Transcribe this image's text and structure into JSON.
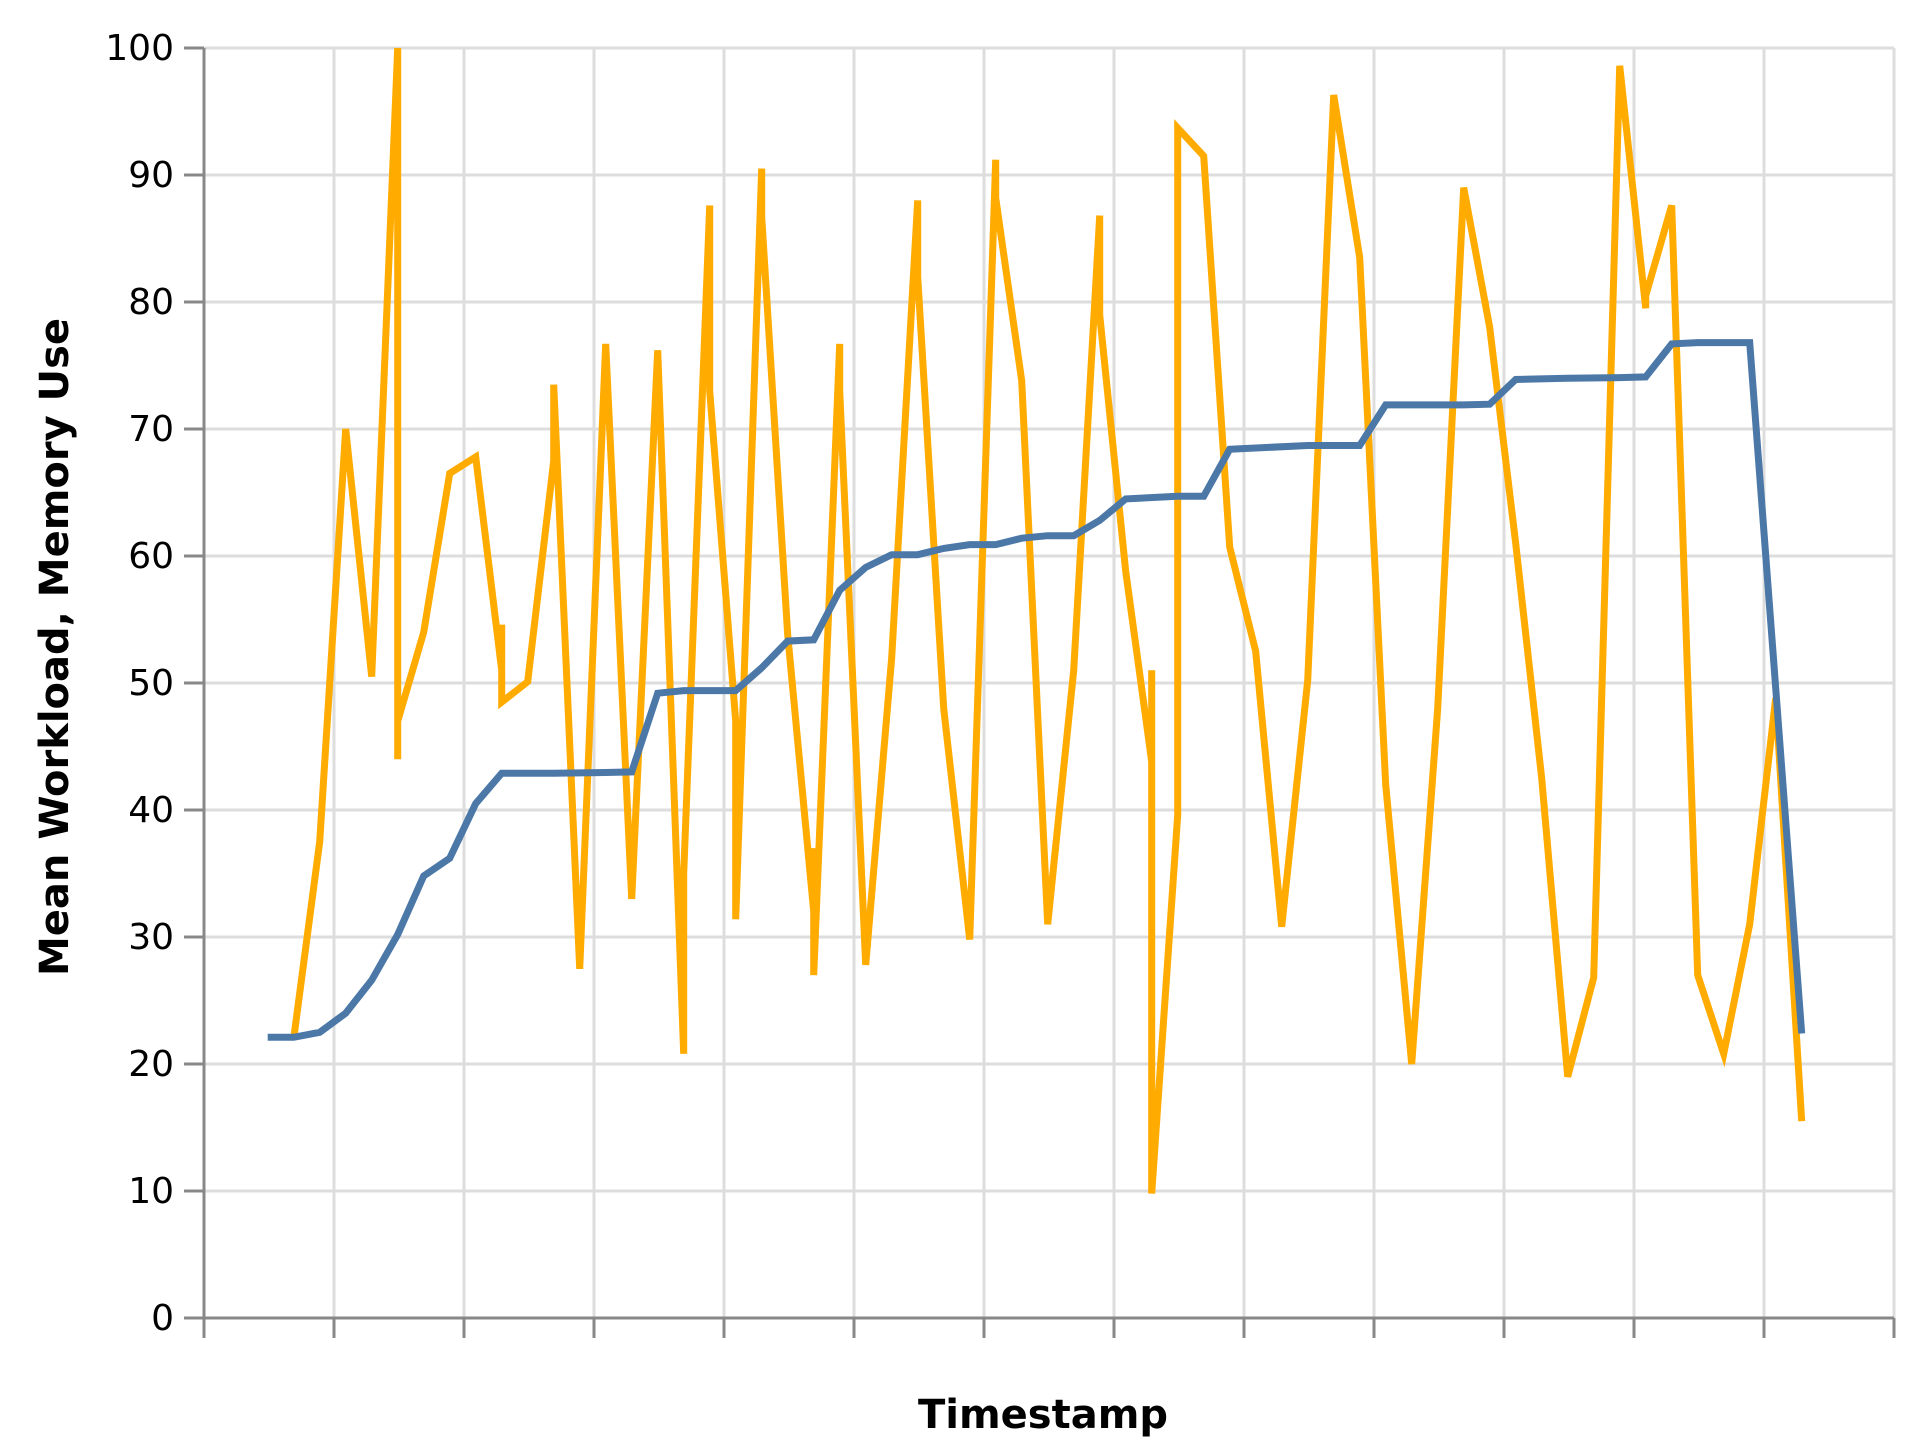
{
  "chart_data": {
    "type": "line",
    "title": "",
    "xlabel": "Timestamp",
    "ylabel": "Mean Workload, Memory Use",
    "ylim": [
      0,
      100
    ],
    "yticks": [
      0,
      10,
      20,
      30,
      40,
      50,
      60,
      70,
      80,
      90,
      100
    ],
    "xlim": [
      0,
      13
    ],
    "xtick_count": 14,
    "grid": true,
    "legend": "none",
    "series": [
      {
        "color": "#ffab00",
        "points": [
          [
            0.69,
            22.0
          ],
          [
            0.89,
            37.5
          ],
          [
            1.09,
            70.0
          ],
          [
            1.29,
            50.5
          ],
          [
            1.49,
            100.0
          ],
          [
            1.49,
            44.0
          ],
          [
            1.49,
            47.0
          ],
          [
            1.69,
            54.0
          ],
          [
            1.89,
            66.5
          ],
          [
            2.09,
            67.8
          ],
          [
            2.29,
            51.0
          ],
          [
            2.29,
            54.6
          ],
          [
            2.29,
            48.5
          ],
          [
            2.49,
            50.1
          ],
          [
            2.69,
            67.5
          ],
          [
            2.69,
            73.5
          ],
          [
            2.89,
            27.5
          ],
          [
            3.09,
            76.7
          ],
          [
            3.29,
            33.0
          ],
          [
            3.49,
            76.2
          ],
          [
            3.69,
            20.8
          ],
          [
            3.69,
            35.0
          ],
          [
            3.89,
            87.6
          ],
          [
            3.89,
            73.0
          ],
          [
            4.09,
            47.0
          ],
          [
            4.09,
            31.4
          ],
          [
            4.29,
            90.5
          ],
          [
            4.29,
            86.7
          ],
          [
            4.49,
            53.8
          ],
          [
            4.69,
            32.0
          ],
          [
            4.69,
            37.0
          ],
          [
            4.69,
            27.0
          ],
          [
            4.89,
            76.7
          ],
          [
            4.89,
            73.0
          ],
          [
            5.09,
            27.8
          ],
          [
            5.29,
            52.0
          ],
          [
            5.49,
            88.0
          ],
          [
            5.49,
            82.0
          ],
          [
            5.69,
            48.0
          ],
          [
            5.89,
            29.8
          ],
          [
            6.09,
            91.2
          ],
          [
            6.09,
            88.2
          ],
          [
            6.29,
            73.8
          ],
          [
            6.49,
            31.0
          ],
          [
            6.69,
            51.0
          ],
          [
            6.89,
            86.8
          ],
          [
            6.89,
            79.0
          ],
          [
            7.09,
            58.8
          ],
          [
            7.29,
            43.8
          ],
          [
            7.29,
            51.0
          ],
          [
            7.29,
            9.8
          ],
          [
            7.49,
            39.6
          ],
          [
            7.49,
            93.7
          ],
          [
            7.69,
            91.5
          ],
          [
            7.89,
            60.7
          ],
          [
            8.09,
            52.5
          ],
          [
            8.29,
            30.8
          ],
          [
            8.49,
            50.2
          ],
          [
            8.69,
            96.3
          ],
          [
            8.89,
            83.5
          ],
          [
            9.09,
            42.0
          ],
          [
            9.29,
            20.0
          ],
          [
            9.49,
            48.0
          ],
          [
            9.69,
            89.0
          ],
          [
            9.89,
            78.0
          ],
          [
            10.09,
            61.0
          ],
          [
            10.29,
            42.5
          ],
          [
            10.49,
            19.0
          ],
          [
            10.69,
            26.8
          ],
          [
            10.89,
            98.6
          ],
          [
            11.09,
            79.5
          ],
          [
            11.09,
            80.5
          ],
          [
            11.29,
            87.6
          ],
          [
            11.49,
            27.0
          ],
          [
            11.69,
            20.8
          ],
          [
            11.89,
            31.0
          ],
          [
            12.09,
            48.8
          ],
          [
            12.29,
            15.5
          ]
        ]
      },
      {
        "color": "#4c78a8",
        "points": [
          [
            0.49,
            22.1
          ],
          [
            0.69,
            22.1
          ],
          [
            0.89,
            22.5
          ],
          [
            1.09,
            24.0
          ],
          [
            1.29,
            26.6
          ],
          [
            1.49,
            30.2
          ],
          [
            1.69,
            34.8
          ],
          [
            1.89,
            36.2
          ],
          [
            2.09,
            40.5
          ],
          [
            2.29,
            42.9
          ],
          [
            2.69,
            42.9
          ],
          [
            3.09,
            42.95
          ],
          [
            3.29,
            43.0
          ],
          [
            3.49,
            49.2
          ],
          [
            3.69,
            49.4
          ],
          [
            4.09,
            49.4
          ],
          [
            4.29,
            51.2
          ],
          [
            4.49,
            53.3
          ],
          [
            4.69,
            53.4
          ],
          [
            4.89,
            57.3
          ],
          [
            5.09,
            59.1
          ],
          [
            5.29,
            60.1
          ],
          [
            5.49,
            60.1
          ],
          [
            5.69,
            60.6
          ],
          [
            5.89,
            60.9
          ],
          [
            6.09,
            60.9
          ],
          [
            6.29,
            61.4
          ],
          [
            6.49,
            61.6
          ],
          [
            6.69,
            61.6
          ],
          [
            6.89,
            62.8
          ],
          [
            7.09,
            64.5
          ],
          [
            7.49,
            64.7
          ],
          [
            7.69,
            64.7
          ],
          [
            7.89,
            68.4
          ],
          [
            8.09,
            68.5
          ],
          [
            8.49,
            68.7
          ],
          [
            8.89,
            68.7
          ],
          [
            9.09,
            71.9
          ],
          [
            9.69,
            71.9
          ],
          [
            9.89,
            71.95
          ],
          [
            10.09,
            73.9
          ],
          [
            10.49,
            74.0
          ],
          [
            10.89,
            74.05
          ],
          [
            11.09,
            74.1
          ],
          [
            11.29,
            76.7
          ],
          [
            11.49,
            76.8
          ],
          [
            11.89,
            76.8
          ],
          [
            12.29,
            22.4
          ]
        ]
      }
    ]
  }
}
